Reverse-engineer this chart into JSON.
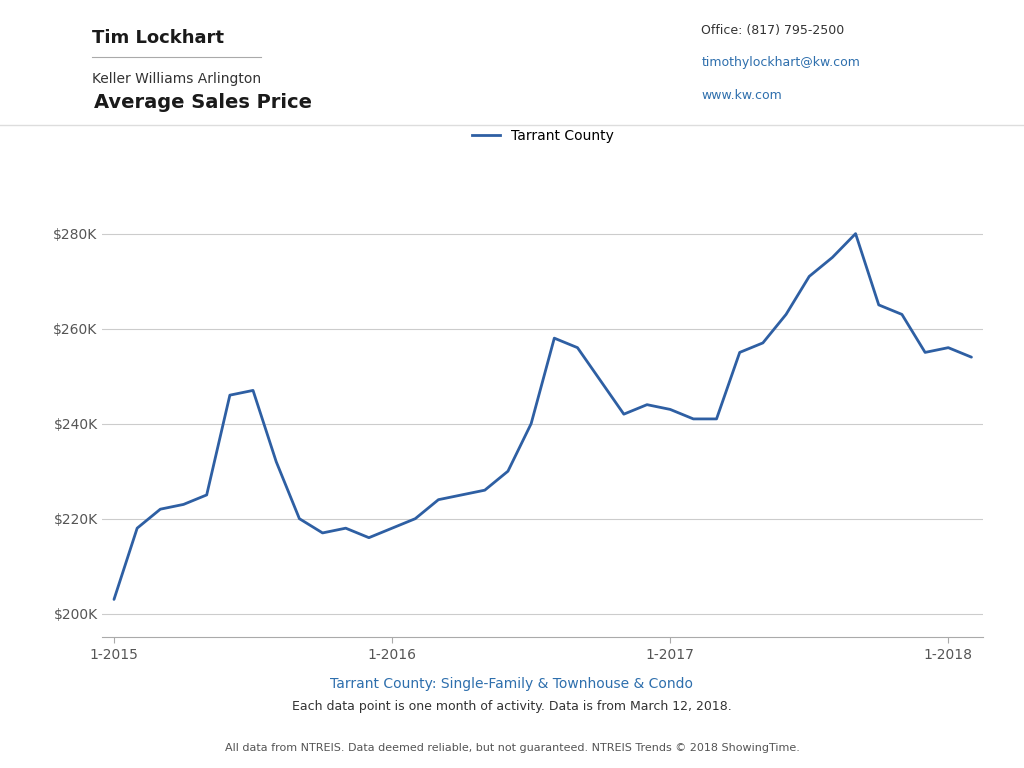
{
  "title": "Average Sales Price",
  "line_color": "#2e5fa3",
  "legend_label": "Tarrant County",
  "background_color": "#ffffff",
  "plot_bg_color": "#ffffff",
  "grid_color": "#cccccc",
  "ylabel_color": "#555555",
  "xlabel_ticks": [
    "1-2015",
    "1-2016",
    "1-2017",
    "1-2018"
  ],
  "yticks": [
    200000,
    220000,
    240000,
    260000,
    280000
  ],
  "ytick_labels": [
    "$200K",
    "$220K",
    "$240K",
    "$260K",
    "$280K"
  ],
  "ylim": [
    195000,
    292000
  ],
  "subtitle_line1": "Tarrant County: Single-Family & Townhouse & Condo",
  "subtitle_line2": "Each data point is one month of activity. Data is from March 12, 2018.",
  "footer": "All data from NTREIS. Data deemed reliable, but not guaranteed. NTREIS Trends © 2018 ShowingTime.",
  "header_name": "Tim Lockhart",
  "header_company": "Keller Williams Arlington",
  "header_office": "Office: (817) 795-2500",
  "header_email": "timothylockhart@kw.com",
  "header_web": "www.kw.com",
  "x_values": [
    0,
    1,
    2,
    3,
    4,
    5,
    6,
    7,
    8,
    9,
    10,
    11,
    12,
    13,
    14,
    15,
    16,
    17,
    18,
    19,
    20,
    21,
    22,
    23,
    24,
    25,
    26,
    27,
    28,
    29,
    30,
    31,
    32,
    33,
    34,
    35,
    36,
    37
  ],
  "y_values": [
    203000,
    218000,
    222000,
    223000,
    225000,
    246000,
    247000,
    232000,
    220000,
    217000,
    218000,
    216000,
    218000,
    220000,
    224000,
    225000,
    226000,
    230000,
    240000,
    258000,
    256000,
    249000,
    242000,
    244000,
    243000,
    241000,
    241000,
    255000,
    257000,
    263000,
    271000,
    275000,
    280000,
    265000,
    263000,
    255000,
    256000,
    254000
  ],
  "x_tick_positions": [
    0,
    12,
    24,
    36
  ],
  "subtitle_color": "#2e6fad",
  "footer_color": "#555555"
}
